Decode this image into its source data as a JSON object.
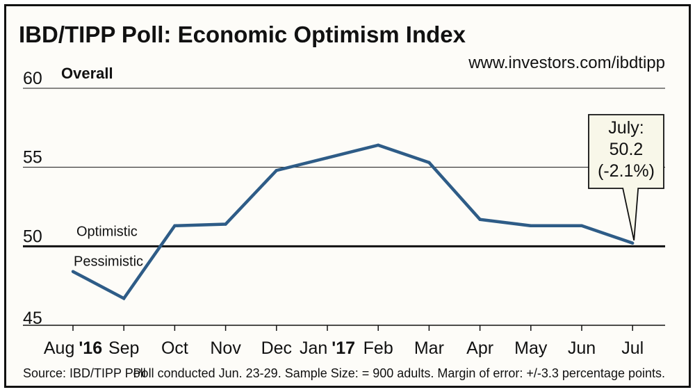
{
  "chart_data": {
    "type": "line",
    "title": "IBD/TIPP Poll: Economic Optimism Index",
    "url": "www.investors.com/ibdtipp",
    "series_label": "Overall",
    "categories": [
      {
        "month": "Aug",
        "year": "'16"
      },
      {
        "month": "Sep",
        "year": ""
      },
      {
        "month": "Oct",
        "year": ""
      },
      {
        "month": "Nov",
        "year": ""
      },
      {
        "month": "Dec",
        "year": ""
      },
      {
        "month": "Jan",
        "year": "'17"
      },
      {
        "month": "Feb",
        "year": ""
      },
      {
        "month": "Mar",
        "year": ""
      },
      {
        "month": "Apr",
        "year": ""
      },
      {
        "month": "May",
        "year": ""
      },
      {
        "month": "Jun",
        "year": ""
      },
      {
        "month": "Jul",
        "year": ""
      }
    ],
    "values": [
      48.4,
      46.7,
      51.3,
      51.4,
      54.8,
      55.6,
      56.4,
      55.3,
      51.7,
      51.3,
      51.3,
      50.2
    ],
    "ylim": [
      45,
      60
    ],
    "yticks": [
      60,
      55,
      50,
      45
    ],
    "reference_line": {
      "value": 50,
      "label_above": "Optimistic",
      "label_below": "Pessimistic"
    },
    "callout": {
      "lines": [
        "July:",
        "50.2",
        "(-2.1%)"
      ],
      "target_index": 11
    },
    "line_color": "#2e5c87",
    "source": "Source: IBD/TIPP Poll",
    "note": "Poll conducted Jun. 23-29. Sample Size: = 900 adults. Margin of error: +/-3.3 percentage points."
  }
}
